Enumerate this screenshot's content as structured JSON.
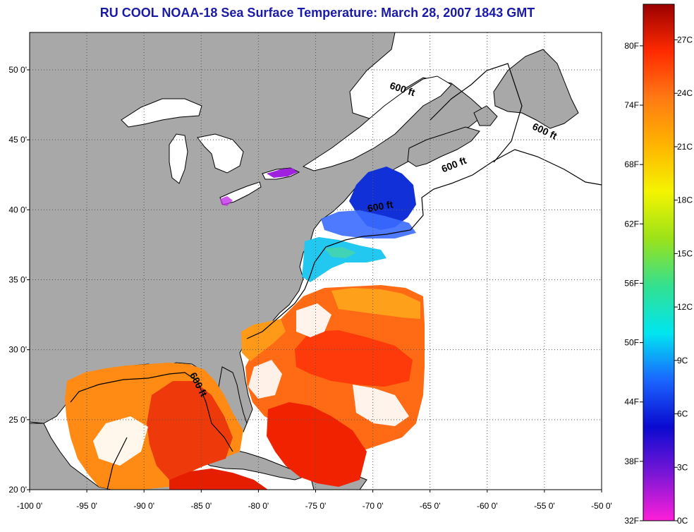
{
  "title": "RU COOL  NOAA-18  Sea Surface Temperature:  March 28, 2007 1843 GMT",
  "map": {
    "lon_range": [
      -100,
      -50
    ],
    "lat_range": [
      20,
      52
    ],
    "lon_ticks": [
      {
        "v": -100,
        "label": "-100 0'"
      },
      {
        "v": -95,
        "label": "-95 0'"
      },
      {
        "v": -90,
        "label": "-90 0'"
      },
      {
        "v": -85,
        "label": "-85 0'"
      },
      {
        "v": -80,
        "label": "-80 0'"
      },
      {
        "v": -75,
        "label": "-75 0'"
      },
      {
        "v": -70,
        "label": "-70 0'"
      },
      {
        "v": -65,
        "label": "-65 0'"
      },
      {
        "v": -60,
        "label": "-60 0'"
      },
      {
        "v": -55,
        "label": "-55 0'"
      },
      {
        "v": -50,
        "label": "-50 0'"
      }
    ],
    "lat_ticks": [
      {
        "v": 20,
        "label": "20 0'"
      },
      {
        "v": 25,
        "label": "25 0'"
      },
      {
        "v": 30,
        "label": "30 0'"
      },
      {
        "v": 35,
        "label": "35 0'"
      },
      {
        "v": 40,
        "label": "40 0'"
      },
      {
        "v": 45,
        "label": "45 0'"
      },
      {
        "v": 50,
        "label": "50 0'"
      }
    ],
    "grid": true,
    "isobath_label": "600 ft",
    "isobath_labels": [
      {
        "lon": -67.5,
        "lat": 48.4,
        "rotate": 18
      },
      {
        "lon": -55.1,
        "lat": 45.4,
        "rotate": 25
      },
      {
        "lon": -62.8,
        "lat": 43.0,
        "rotate": -22
      },
      {
        "lon": -69.3,
        "lat": 40.0,
        "rotate": -10
      },
      {
        "lon": -85.5,
        "lat": 27.4,
        "rotate": 62
      }
    ],
    "colors": {
      "land": "#a8a8a8",
      "nodata": "#ffffff",
      "coast": "#000000",
      "grid": "#555555"
    }
  },
  "colorbar": {
    "min_c": 0,
    "max_c": 29,
    "celsius_ticks": [
      {
        "v": 0,
        "label": "0C"
      },
      {
        "v": 3,
        "label": "3C"
      },
      {
        "v": 6,
        "label": "6C"
      },
      {
        "v": 9,
        "label": "9C"
      },
      {
        "v": 12,
        "label": "12C"
      },
      {
        "v": 15,
        "label": "15C"
      },
      {
        "v": 18,
        "label": "18C"
      },
      {
        "v": 21,
        "label": "21C"
      },
      {
        "v": 24,
        "label": "24C"
      },
      {
        "v": 27,
        "label": "27C"
      }
    ],
    "fahrenheit_ticks": [
      {
        "v": 32,
        "label": "32F"
      },
      {
        "v": 38,
        "label": "38F"
      },
      {
        "v": 44,
        "label": "44F"
      },
      {
        "v": 50,
        "label": "50F"
      },
      {
        "v": 56,
        "label": "56F"
      },
      {
        "v": 62,
        "label": "62F"
      },
      {
        "v": 68,
        "label": "68F"
      },
      {
        "v": 74,
        "label": "74F"
      },
      {
        "v": 80,
        "label": "80F"
      }
    ],
    "stops": [
      "#ff1fd8",
      "#7a16d6",
      "#0a0ad0",
      "#1a66ff",
      "#00e6f0",
      "#33e090",
      "#9ae21a",
      "#f4f400",
      "#ffb400",
      "#ff7a14",
      "#ff2a00",
      "#9a0000"
    ]
  }
}
